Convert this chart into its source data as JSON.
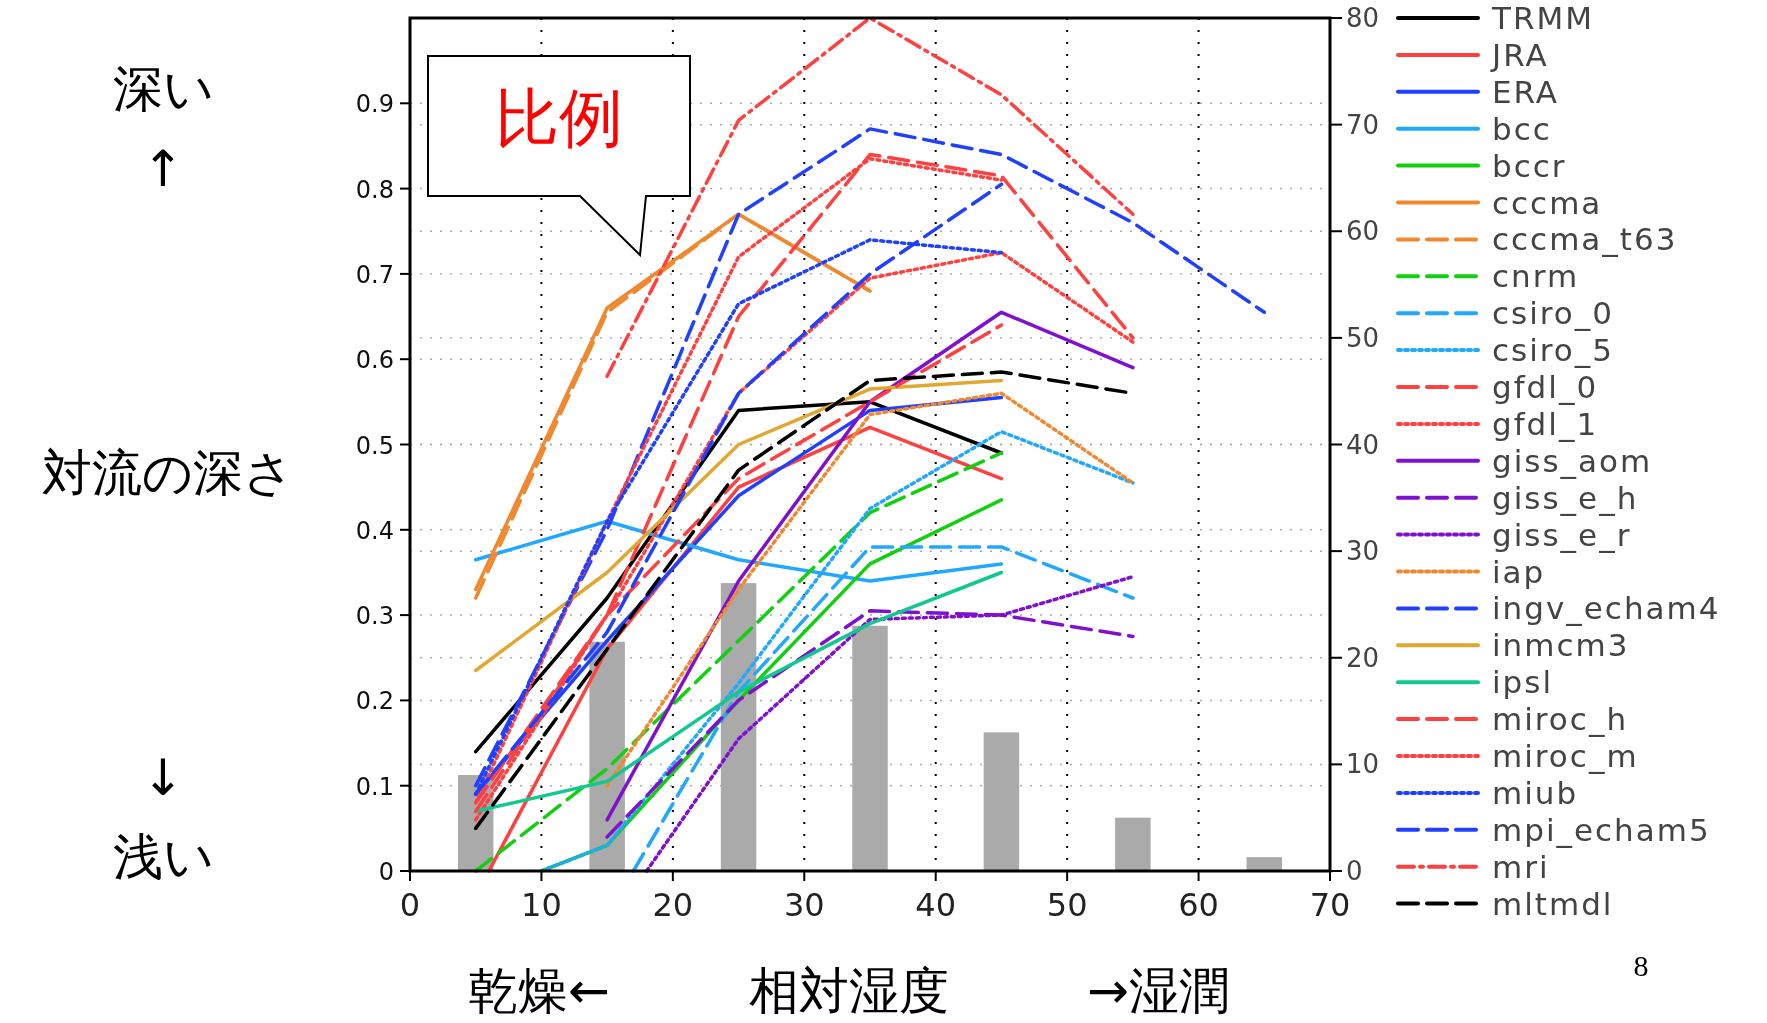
{
  "chart_data": {
    "type": "line",
    "xlabel": "相対湿度",
    "ylabel": "対流の深さ",
    "annotations": [
      "深い",
      "↑",
      "↓",
      "浅い",
      "乾燥←",
      "→湿潤",
      "比例",
      "8"
    ],
    "x": [
      5,
      15,
      25,
      35,
      45,
      55,
      65
    ],
    "xlim": [
      0,
      70
    ],
    "xticks": [
      0,
      10,
      20,
      30,
      40,
      50,
      60,
      70
    ],
    "ylim": [
      0,
      1
    ],
    "yticks": [
      0,
      0.1,
      0.2,
      0.3,
      0.4,
      0.5,
      0.6,
      0.7,
      0.8,
      0.9
    ],
    "y2lim": [
      0,
      80
    ],
    "y2ticks": [
      0,
      10,
      20,
      30,
      40,
      50,
      60,
      70,
      80
    ],
    "grid": true,
    "legend": "right",
    "series": [
      {
        "type": "bar",
        "axis": "y2",
        "color": "#aaaaaa",
        "values": [
          9,
          21.5,
          27,
          23,
          13,
          5,
          1.3
        ]
      },
      {
        "name": "TRMM",
        "color": "#000000",
        "line_style": "solid",
        "values": [
          0.14,
          0.32,
          0.54,
          0.55,
          0.49,
          null,
          null
        ]
      },
      {
        "name": "JRA",
        "color": "#ff4040",
        "line_style": "solid",
        "x": [
          6,
          15,
          25,
          35,
          45
        ],
        "values": [
          0,
          0.26,
          0.45,
          0.52,
          0.46
        ]
      },
      {
        "name": "ERA",
        "color": "#2040ff",
        "line_style": "solid",
        "values": [
          0.09,
          0.27,
          0.44,
          0.54,
          0.555,
          null,
          null
        ]
      },
      {
        "name": "bcc",
        "color": "#20a8ff",
        "line_style": "solid",
        "values": [
          0.365,
          0.41,
          0.365,
          0.34,
          0.36,
          null,
          null
        ]
      },
      {
        "name": "bccr",
        "color": "#10d010",
        "line_style": "solid",
        "x": [
          10,
          15,
          25,
          35,
          45
        ],
        "values": [
          0,
          0.03,
          0.2,
          0.36,
          0.435
        ]
      },
      {
        "name": "cccma",
        "color": "#f08830",
        "line_style": "solid",
        "values": [
          0.33,
          0.66,
          0.77,
          0.68,
          null,
          null,
          null
        ]
      },
      {
        "name": "cccma_t63",
        "color": "#f08830",
        "line_style": "dashed",
        "values": [
          0.32,
          0.655,
          0.77,
          0.68,
          null,
          null,
          null
        ]
      },
      {
        "name": "cnrm",
        "color": "#10d010",
        "line_style": "dashed",
        "values": [
          0,
          0.12,
          0.27,
          0.42,
          0.49,
          null,
          null
        ]
      },
      {
        "name": "csiro_0",
        "color": "#20a8ff",
        "line_style": "dashed",
        "x": [
          17,
          25,
          35,
          45,
          55
        ],
        "values": [
          0,
          0.21,
          0.38,
          0.38,
          0.32
        ]
      },
      {
        "name": "csiro_5",
        "color": "#20a8ff",
        "line_style": "dotted",
        "x": [
          10,
          15,
          25,
          35,
          45,
          55
        ],
        "values": [
          0,
          0.03,
          0.22,
          0.425,
          0.515,
          0.455
        ]
      },
      {
        "name": "gfdl_0",
        "color": "#ff4040",
        "line_style": "dashed",
        "values": [
          0.08,
          0.3,
          0.65,
          0.84,
          0.815,
          0.625,
          null
        ]
      },
      {
        "name": "gfdl_1",
        "color": "#ff4040",
        "line_style": "dotted",
        "values": [
          0.06,
          0.3,
          0.56,
          0.695,
          0.725,
          0.62,
          null
        ]
      },
      {
        "name": "giss_aom",
        "color": "#8010d0",
        "line_style": "solid",
        "values": [
          null,
          0.06,
          0.34,
          0.55,
          0.655,
          0.59,
          null
        ]
      },
      {
        "name": "giss_e_h",
        "color": "#8010d0",
        "line_style": "dashed",
        "values": [
          null,
          0.04,
          0.2,
          0.305,
          0.3,
          0.275,
          null
        ]
      },
      {
        "name": "giss_e_r",
        "color": "#8010d0",
        "line_style": "dotted",
        "x": [
          18,
          25,
          35,
          45,
          55
        ],
        "values": [
          0,
          0.155,
          0.295,
          0.3,
          0.345
        ]
      },
      {
        "name": "iap",
        "color": "#f08830",
        "line_style": "dotted",
        "values": [
          null,
          0.1,
          0.33,
          0.535,
          0.56,
          0.455,
          null
        ]
      },
      {
        "name": "ingv_echam4",
        "color": "#2040ff",
        "line_style": "dashed",
        "values": [
          0.1,
          0.4,
          0.77,
          0.87,
          0.84,
          0.76,
          0.655
        ]
      },
      {
        "name": "inmcm3",
        "color": "#e0a830",
        "line_style": "solid",
        "values": [
          0.235,
          0.35,
          0.5,
          0.565,
          0.575,
          null,
          null
        ]
      },
      {
        "name": "ipsl",
        "color": "#10c890",
        "line_style": "solid",
        "values": [
          0.07,
          0.105,
          0.21,
          0.29,
          0.35,
          null,
          null
        ]
      },
      {
        "name": "miroc_h",
        "color": "#ff4040",
        "line_style": "dashed",
        "values": [
          0.07,
          0.3,
          0.46,
          0.55,
          0.64,
          null,
          null
        ]
      },
      {
        "name": "miroc_m",
        "color": "#ff4040",
        "line_style": "dotted",
        "values": [
          0.08,
          0.41,
          0.72,
          0.835,
          0.81,
          null,
          null
        ]
      },
      {
        "name": "miub",
        "color": "#2040ff",
        "line_style": "dotted",
        "values": [
          0.09,
          0.41,
          0.665,
          0.74,
          0.725,
          null,
          null
        ]
      },
      {
        "name": "mpi_echam5",
        "color": "#2040ff",
        "line_style": "dashed",
        "values": [
          0.09,
          0.28,
          0.56,
          0.7,
          0.805,
          null,
          null
        ]
      },
      {
        "name": "mri",
        "color": "#ff4040",
        "line_style": "dashdot",
        "values": [
          null,
          0.58,
          0.88,
          1.0,
          0.91,
          0.77,
          null
        ]
      },
      {
        "name": "mltmdl",
        "color": "#000000",
        "line_style": "dashed",
        "values": [
          0.05,
          0.26,
          0.47,
          0.575,
          0.585,
          0.56,
          null
        ]
      }
    ]
  }
}
